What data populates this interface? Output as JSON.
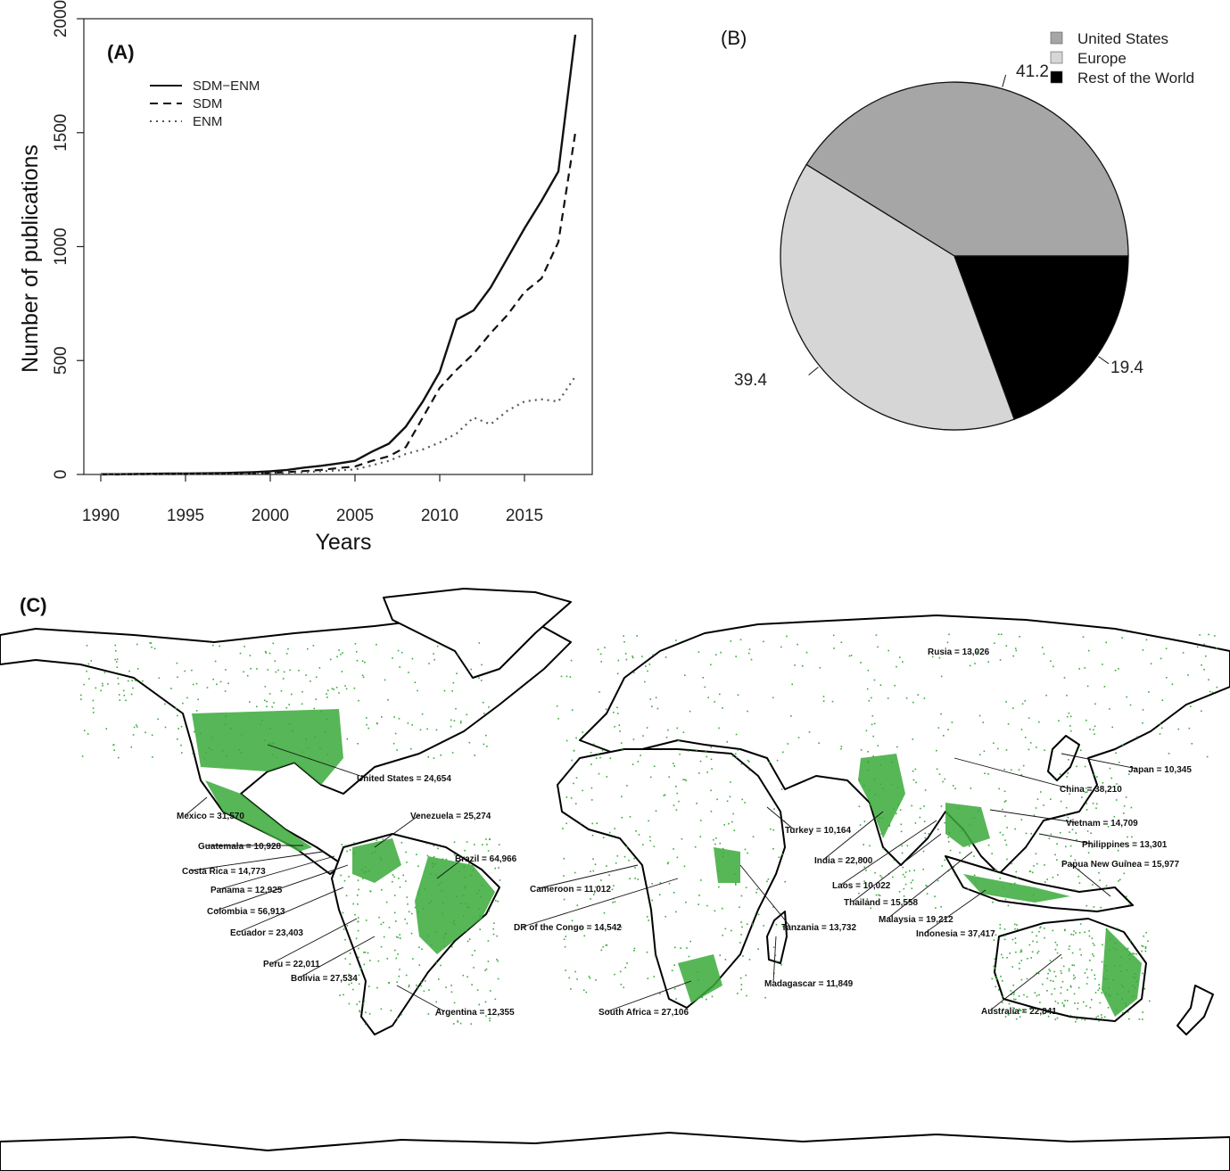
{
  "chart_data": [
    {
      "panel": "(A)",
      "type": "line",
      "xlabel": "Years",
      "ylabel": "Number of publications",
      "xlim": [
        1989,
        2019
      ],
      "ylim": [
        0,
        2000
      ],
      "x_ticks": [
        1990,
        1995,
        2000,
        2005,
        2010,
        2015
      ],
      "y_ticks": [
        0,
        500,
        1000,
        1500,
        2000
      ],
      "legend_position": "top-left",
      "x": [
        1990,
        1991,
        1992,
        1993,
        1994,
        1995,
        1996,
        1997,
        1998,
        1999,
        2000,
        2001,
        2002,
        2003,
        2004,
        2005,
        2006,
        2007,
        2008,
        2009,
        2010,
        2011,
        2012,
        2013,
        2014,
        2015,
        2016,
        2017,
        2018
      ],
      "series": [
        {
          "name": "SDM−ENM",
          "line_style": "solid",
          "values": [
            1,
            1,
            2,
            3,
            4,
            4,
            5,
            6,
            8,
            10,
            14,
            20,
            30,
            38,
            48,
            60,
            100,
            135,
            210,
            320,
            450,
            680,
            720,
            820,
            950,
            1080,
            1200,
            1330,
            1930
          ]
        },
        {
          "name": "SDM",
          "line_style": "dashed",
          "values": [
            0,
            0,
            1,
            1,
            2,
            2,
            3,
            3,
            4,
            5,
            7,
            10,
            15,
            20,
            28,
            35,
            60,
            80,
            120,
            250,
            380,
            460,
            530,
            620,
            700,
            800,
            860,
            1020,
            1500
          ]
        },
        {
          "name": "ENM",
          "line_style": "dotted",
          "values": [
            0,
            0,
            1,
            1,
            1,
            2,
            2,
            2,
            3,
            4,
            5,
            7,
            10,
            14,
            18,
            22,
            40,
            60,
            90,
            110,
            140,
            180,
            250,
            220,
            280,
            320,
            330,
            320,
            430
          ]
        }
      ]
    },
    {
      "panel": "(B)",
      "type": "pie",
      "slices": [
        {
          "name": "United States",
          "value": 41.2,
          "label": "41.2",
          "color": "#a6a6a6"
        },
        {
          "name": "Europe",
          "value": 39.4,
          "label": "39.4",
          "color": "#d6d6d6"
        },
        {
          "name": "Rest of the World",
          "value": 19.4,
          "label": "19.4",
          "color": "#000000"
        }
      ],
      "legend_position": "top-right"
    }
  ],
  "map": {
    "panel": "(C)",
    "land_color": "#ffffff",
    "record_color": "#3aaa3a",
    "labels": [
      "Rusia = 13,026",
      "United States = 24,654",
      "Japan = 10,345",
      "China = 38,210",
      "Mexico = 31,570",
      "Venezuela = 25,274",
      "Vietnam = 14,709",
      "Turkey = 10,164",
      "Guatemala = 10,928",
      "Philippines = 13,301",
      "Brazil = 64,966",
      "India = 22,800",
      "Costa Rica = 14,773",
      "Papua New Guinea = 15,977",
      "Panama = 12,925",
      "Cameroon = 11,012",
      "Laos = 10,022",
      "Colombia = 56,913",
      "Thailand = 15,558",
      "Malaysia = 19,212",
      "DR of the Congo = 14,542",
      "Tanzania = 13,732",
      "Ecuador = 23,403",
      "Indonesia = 37,417",
      "Peru = 22,011",
      "Bolivia = 27,534",
      "Madagascar = 11,849",
      "Argentina = 12,355",
      "South Africa = 27,106",
      "Australia = 22,841"
    ]
  }
}
